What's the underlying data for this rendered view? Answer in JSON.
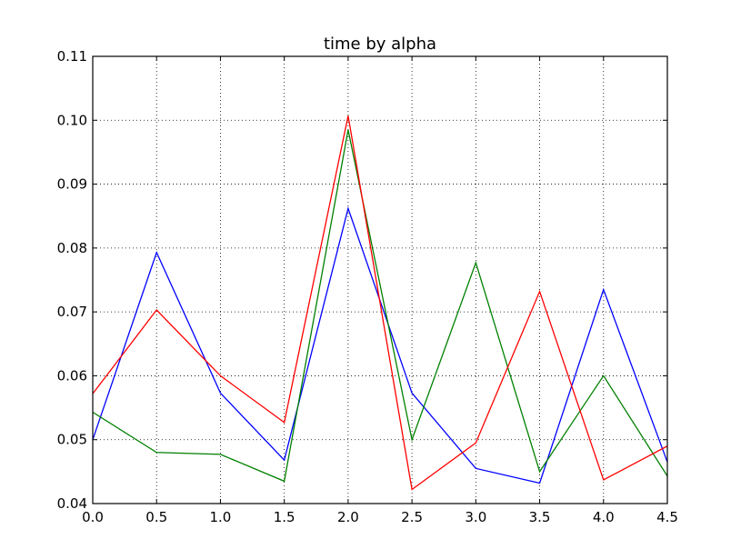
{
  "chart_data": {
    "type": "line",
    "title": "time by alpha",
    "xlabel": "",
    "ylabel": "",
    "x": [
      0.0,
      0.5,
      1.0,
      1.5,
      2.0,
      2.5,
      3.0,
      3.5,
      4.0,
      4.5
    ],
    "xlim": [
      0.0,
      4.5
    ],
    "ylim": [
      0.04,
      0.11
    ],
    "xticks": [
      "0.0",
      "0.5",
      "1.0",
      "1.5",
      "2.0",
      "2.5",
      "3.0",
      "3.5",
      "4.0",
      "4.5"
    ],
    "yticks": [
      "0.04",
      "0.05",
      "0.06",
      "0.07",
      "0.08",
      "0.09",
      "0.10",
      "0.11"
    ],
    "grid": true,
    "series": [
      {
        "color": "#0000ff",
        "values": [
          0.05,
          0.0793,
          0.0573,
          0.0468,
          0.0862,
          0.0573,
          0.0455,
          0.0432,
          0.0735,
          0.0465
        ]
      },
      {
        "color": "#008000",
        "values": [
          0.0543,
          0.048,
          0.0477,
          0.0435,
          0.0985,
          0.05,
          0.0777,
          0.045,
          0.06,
          0.0443
        ]
      },
      {
        "color": "#ff0000",
        "values": [
          0.0572,
          0.0703,
          0.06,
          0.0527,
          0.1007,
          0.0422,
          0.0495,
          0.0732,
          0.0437,
          0.049
        ]
      }
    ]
  }
}
